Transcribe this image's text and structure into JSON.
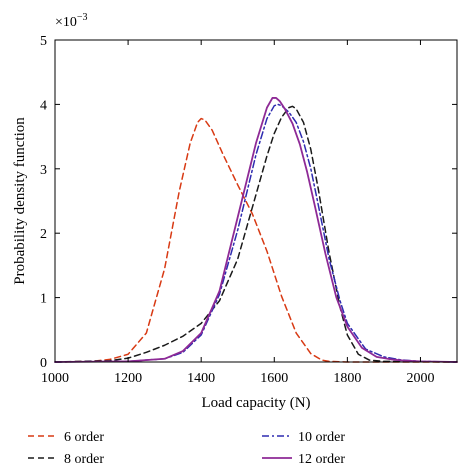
{
  "chart_data": {
    "type": "line",
    "title": "",
    "xlabel": "Load capacity (N)",
    "ylabel": "Probability density function",
    "y_scale_factor_label": "×10",
    "y_scale_factor_exponent": "−3",
    "xlim": [
      1000,
      2100
    ],
    "ylim": [
      0,
      5
    ],
    "x_ticks": [
      1000,
      1200,
      1400,
      1600,
      1800,
      2000
    ],
    "x_tick_labels": [
      "1000",
      "1200",
      "1400",
      "1600",
      "1800",
      "2000"
    ],
    "y_ticks": [
      0,
      1,
      2,
      3,
      4,
      5
    ],
    "y_tick_labels": [
      "0",
      "1",
      "2",
      "3",
      "4",
      "5"
    ],
    "grid": false,
    "legend_position": "bottom",
    "series": [
      {
        "name": "6 order",
        "color": "#d83a14",
        "dash": "dashed",
        "x": [
          1000,
          1100,
          1150,
          1200,
          1250,
          1300,
          1340,
          1370,
          1390,
          1400,
          1410,
          1430,
          1460,
          1500,
          1540,
          1580,
          1620,
          1660,
          1700,
          1730,
          1750,
          1800,
          2100
        ],
        "y": [
          0,
          0.01,
          0.04,
          0.12,
          0.45,
          1.45,
          2.65,
          3.4,
          3.72,
          3.78,
          3.76,
          3.6,
          3.22,
          2.75,
          2.3,
          1.72,
          1.02,
          0.45,
          0.13,
          0.03,
          0.01,
          0,
          0
        ]
      },
      {
        "name": "8 order",
        "color": "#1a1a1a",
        "dash": "dashed",
        "x": [
          1000,
          1150,
          1200,
          1250,
          1300,
          1350,
          1400,
          1450,
          1500,
          1550,
          1580,
          1600,
          1620,
          1640,
          1650,
          1660,
          1680,
          1700,
          1720,
          1750,
          1780,
          1800,
          1830,
          1860,
          1900,
          2100
        ],
        "y": [
          0,
          0.02,
          0.06,
          0.15,
          0.26,
          0.4,
          0.6,
          0.95,
          1.6,
          2.6,
          3.2,
          3.55,
          3.8,
          3.95,
          3.97,
          3.93,
          3.72,
          3.3,
          2.7,
          1.7,
          0.85,
          0.42,
          0.12,
          0.03,
          0.01,
          0
        ]
      },
      {
        "name": "10 order",
        "color": "#2e2bb0",
        "dash": "dashdot",
        "x": [
          1000,
          1200,
          1300,
          1350,
          1400,
          1450,
          1500,
          1550,
          1580,
          1600,
          1610,
          1620,
          1640,
          1660,
          1680,
          1700,
          1720,
          1750,
          1780,
          1800,
          1850,
          1900,
          1950,
          2000,
          2100
        ],
        "y": [
          0,
          0.01,
          0.05,
          0.15,
          0.42,
          1.05,
          2.05,
          3.22,
          3.78,
          3.98,
          4.0,
          3.98,
          3.88,
          3.72,
          3.42,
          3.0,
          2.45,
          1.6,
          0.95,
          0.6,
          0.2,
          0.08,
          0.03,
          0.01,
          0
        ]
      },
      {
        "name": "12 order",
        "color": "#8e2a96",
        "dash": "solid",
        "x": [
          1000,
          1200,
          1300,
          1350,
          1400,
          1450,
          1500,
          1550,
          1580,
          1595,
          1605,
          1615,
          1630,
          1650,
          1670,
          1690,
          1710,
          1740,
          1770,
          1800,
          1840,
          1880,
          1920,
          1960,
          2000,
          2100
        ],
        "y": [
          0,
          0.01,
          0.05,
          0.17,
          0.45,
          1.1,
          2.25,
          3.4,
          3.95,
          4.1,
          4.1,
          4.05,
          3.92,
          3.7,
          3.38,
          2.95,
          2.45,
          1.68,
          1.0,
          0.55,
          0.22,
          0.08,
          0.04,
          0.02,
          0.01,
          0
        ]
      }
    ]
  }
}
